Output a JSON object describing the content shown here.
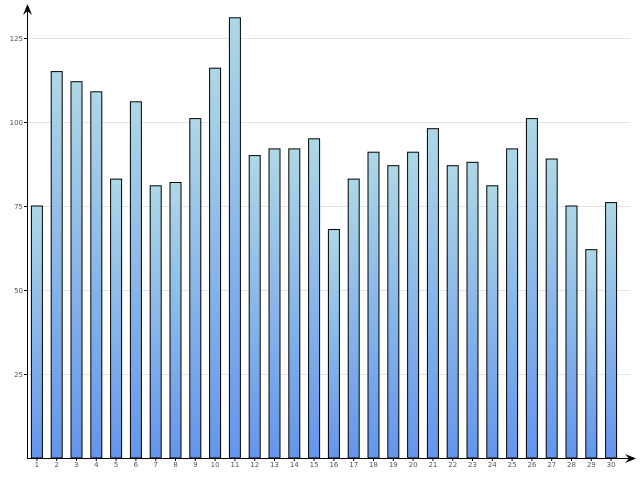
{
  "chart_data": {
    "type": "bar",
    "title": "",
    "xlabel": "",
    "ylabel": "",
    "categories": [
      "1",
      "2",
      "3",
      "4",
      "5",
      "6",
      "7",
      "8",
      "9",
      "10",
      "11",
      "12",
      "13",
      "14",
      "15",
      "16",
      "17",
      "18",
      "19",
      "20",
      "21",
      "22",
      "23",
      "24",
      "25",
      "26",
      "27",
      "28",
      "29",
      "30"
    ],
    "values": [
      75,
      115,
      112,
      109,
      83,
      106,
      81,
      82,
      101,
      116,
      131,
      90,
      92,
      92,
      95,
      68,
      83,
      91,
      87,
      91,
      98,
      87,
      88,
      81,
      92,
      101,
      89,
      75,
      62,
      76
    ],
    "ylim": [
      0,
      136
    ],
    "yticks": [
      25,
      50,
      75,
      100,
      125
    ],
    "ytick_labels": [
      "25",
      "50",
      "75",
      "100",
      "125"
    ],
    "grid": true,
    "legend": "none",
    "colors": {
      "bar_top": "#add8e6",
      "bar_bottom": "#6495ed",
      "bar_outline": "#000000",
      "grid": "#e3e3e3",
      "axis": "#000000",
      "tick_text": "#555555"
    }
  }
}
